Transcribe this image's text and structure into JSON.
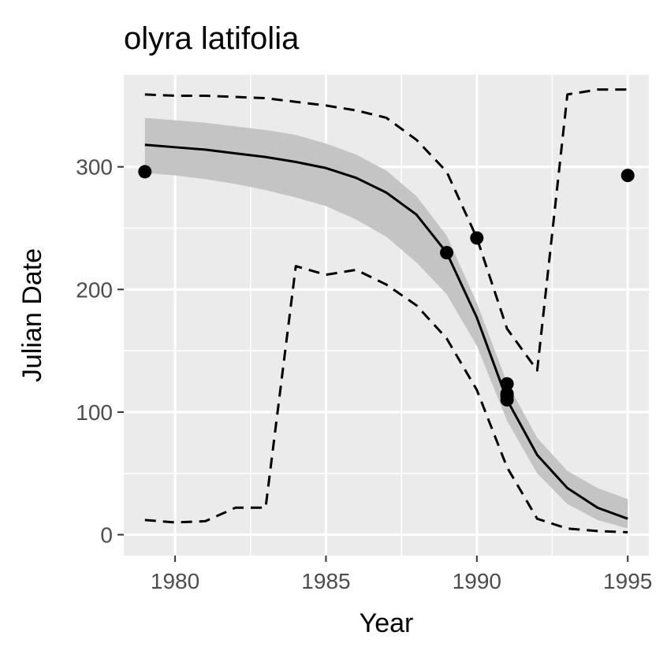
{
  "chart_data": {
    "type": "line",
    "title": "olyra latifolia",
    "xlabel": "Year",
    "ylabel": "Julian Date",
    "xlim": [
      1978.3,
      1995.7
    ],
    "ylim": [
      -17,
      375
    ],
    "x_ticks": [
      1980,
      1985,
      1990,
      1995
    ],
    "y_ticks": [
      0,
      100,
      200,
      300
    ],
    "grid": true,
    "legend": "none",
    "colors": {
      "panel": "#ebebeb",
      "grid": "#ffffff",
      "ribbon": "#c4c4c4",
      "line": "#000000",
      "tick_label": "#4d4d4d"
    },
    "series": [
      {
        "kind": "ribbon",
        "x": [
          1979,
          1980,
          1981,
          1982,
          1983,
          1984,
          1985,
          1986,
          1987,
          1988,
          1989,
          1990,
          1991,
          1992,
          1993,
          1994,
          1995
        ],
        "upper": [
          340,
          338,
          336,
          333,
          330,
          326,
          319,
          310,
          297,
          276,
          244,
          189,
          124,
          79,
          52,
          38,
          29
        ],
        "lower": [
          295,
          293,
          290,
          286,
          281,
          275,
          268,
          257,
          243,
          222,
          196,
          154,
          93,
          50,
          25,
          12,
          5
        ]
      },
      {
        "kind": "fit",
        "style": "solid",
        "x": [
          1979,
          1980,
          1981,
          1982,
          1983,
          1984,
          1985,
          1986,
          1987,
          1988,
          1989,
          1990,
          1991,
          1992,
          1993,
          1994,
          1995
        ],
        "y": [
          318,
          316,
          314,
          311,
          308,
          304,
          299,
          291,
          279,
          261,
          230,
          177,
          110,
          65,
          38,
          22,
          13
        ]
      },
      {
        "kind": "upper-bound",
        "style": "dashed",
        "x": [
          1979,
          1980,
          1981,
          1982,
          1983,
          1984,
          1985,
          1986,
          1987,
          1988,
          1989,
          1990,
          1991,
          1992,
          1993,
          1994,
          1995
        ],
        "y": [
          359,
          358,
          358,
          357,
          356,
          353,
          350,
          346,
          340,
          322,
          296,
          242,
          168,
          134,
          359,
          363,
          363
        ]
      },
      {
        "kind": "lower-bound",
        "style": "dashed",
        "x": [
          1979,
          1980,
          1981,
          1982,
          1983,
          1984,
          1985,
          1986,
          1987,
          1988,
          1989,
          1990,
          1991,
          1992,
          1993,
          1994,
          1995
        ],
        "y": [
          12,
          10,
          11,
          22,
          22,
          219,
          212,
          216,
          204,
          187,
          160,
          118,
          55,
          13,
          5,
          3,
          2
        ]
      },
      {
        "kind": "observations",
        "style": "points",
        "x": [
          1979,
          1989,
          1990,
          1991,
          1991,
          1991,
          1991,
          1995
        ],
        "y": [
          296,
          230,
          242,
          123,
          115,
          113,
          110,
          293
        ]
      }
    ]
  }
}
